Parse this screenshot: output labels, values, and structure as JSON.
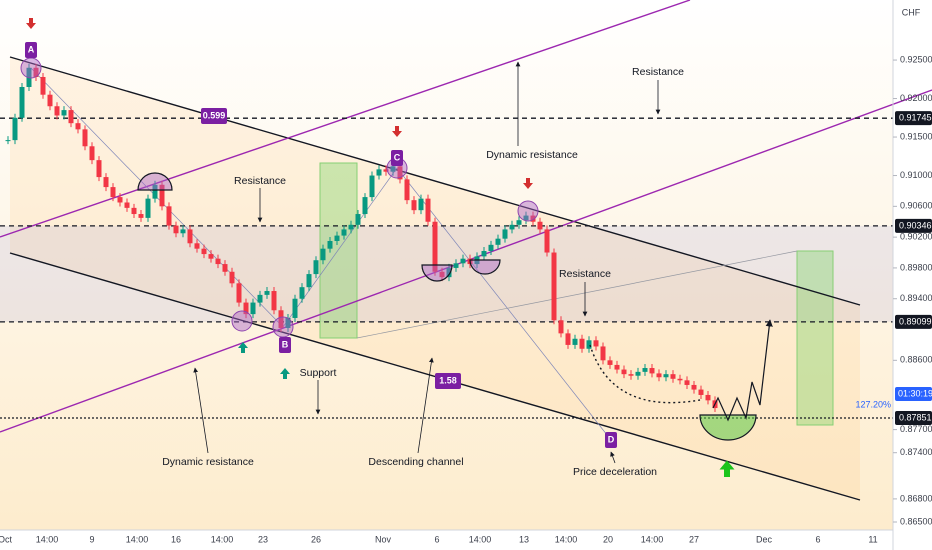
{
  "chart_data": {
    "type": "candlestick",
    "currency": "CHF",
    "closes": [
      0.9146,
      0.9175,
      0.9215,
      0.924,
      0.9228,
      0.9205,
      0.919,
      0.9178,
      0.9185,
      0.9168,
      0.916,
      0.9138,
      0.912,
      0.9098,
      0.9085,
      0.9072,
      0.9065,
      0.9058,
      0.905,
      0.9045,
      0.907,
      0.9088,
      0.906,
      0.9035,
      0.9025,
      0.903,
      0.9012,
      0.9005,
      0.8998,
      0.8992,
      0.8985,
      0.8975,
      0.896,
      0.8935,
      0.892,
      0.8935,
      0.8945,
      0.895,
      0.8925,
      0.8902,
      0.8915,
      0.894,
      0.8955,
      0.8972,
      0.899,
      0.9005,
      0.9015,
      0.9022,
      0.903,
      0.9036,
      0.905,
      0.9072,
      0.91,
      0.9108,
      0.9105,
      0.9112,
      0.9095,
      0.9068,
      0.9055,
      0.907,
      0.904,
      0.8975,
      0.8968,
      0.898,
      0.8986,
      0.8992,
      0.8985,
      0.8995,
      0.9002,
      0.901,
      0.9018,
      0.903,
      0.9036,
      0.9042,
      0.9048,
      0.904,
      0.903,
      0.9,
      0.8912,
      0.8895,
      0.888,
      0.8888,
      0.8875,
      0.8886,
      0.8878,
      0.886,
      0.8854,
      0.8848,
      0.8842,
      0.884,
      0.8845,
      0.885,
      0.8843,
      0.8838,
      0.8842,
      0.8836,
      0.8834,
      0.8828,
      0.8822,
      0.8815,
      0.8808,
      0.8798
    ],
    "ylim": [
      0.86396,
      0.9328
    ],
    "yticks": [
      {
        "value": 0.925,
        "label": "0.92500"
      },
      {
        "value": 0.92,
        "label": "0.92000"
      },
      {
        "value": 0.915,
        "label": "0.91500"
      },
      {
        "value": 0.91,
        "label": "0.91000"
      },
      {
        "value": 0.906,
        "label": "0.90600"
      },
      {
        "value": 0.902,
        "label": "0.90200"
      },
      {
        "value": 0.898,
        "label": "0.89800"
      },
      {
        "value": 0.894,
        "label": "0.89400"
      },
      {
        "value": 0.886,
        "label": "0.88600"
      },
      {
        "value": 0.877,
        "label": "0.87700"
      },
      {
        "value": 0.874,
        "label": "0.87400"
      },
      {
        "value": 0.868,
        "label": "0.86800"
      },
      {
        "value": 0.865,
        "label": "0.86500"
      }
    ],
    "xticks": [
      "Oct",
      "14:00",
      "9",
      "14:00",
      "16",
      "14:00",
      "23",
      "26",
      "Nov",
      "6",
      "14:00",
      "13",
      "14:00",
      "20",
      "14:00",
      "27",
      "Dec",
      "6",
      "11"
    ],
    "levels": [
      {
        "value": 0.91745,
        "label": "0.91745"
      },
      {
        "value": 0.90346,
        "label": "0.90346"
      },
      {
        "value": 0.89099,
        "label": "0.89099"
      },
      {
        "value": 0.87851,
        "label": "0.87851"
      }
    ],
    "annotations": [
      "Resistance",
      "Resistance",
      "Resistance",
      "Dynamic resistance",
      "Dynamic resistance",
      "Support",
      "Descending channel",
      "Price deceleration"
    ],
    "badges": [
      "A",
      "B",
      "C",
      "D",
      "0.599",
      "1.58"
    ],
    "fib_label": "127.20%",
    "countdown": "01:30:19",
    "up_color": "#089981",
    "down_color": "#f23645"
  }
}
